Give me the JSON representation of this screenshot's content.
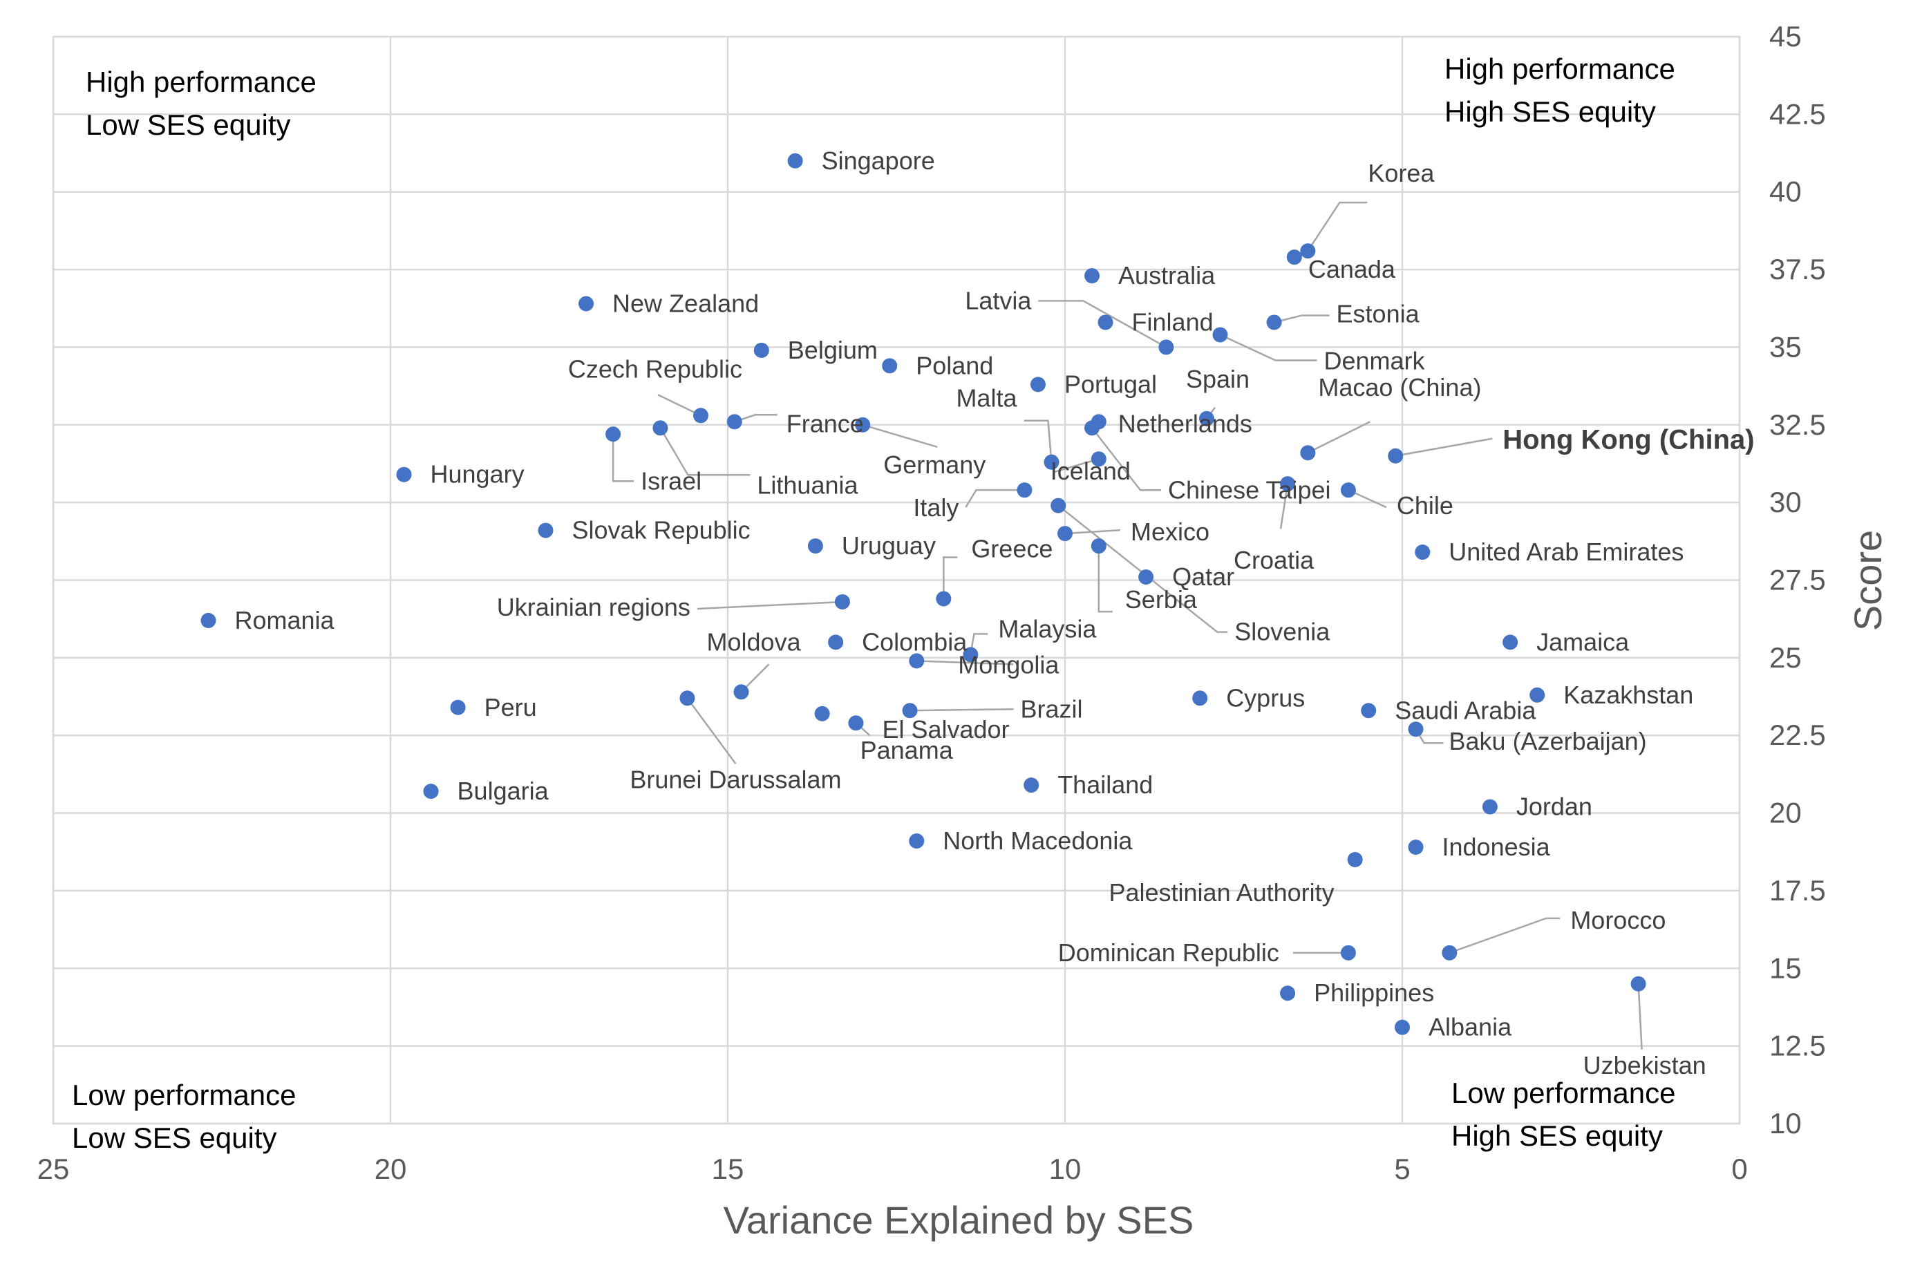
{
  "chart_data": {
    "type": "scatter",
    "title": "",
    "xlabel": "Variance Explained by SES",
    "ylabel": "Score",
    "xlim": [
      25,
      0
    ],
    "x_reversed": true,
    "ylim": [
      10,
      45
    ],
    "x_ticks": [
      "25",
      "20",
      "15",
      "10",
      "5",
      "0"
    ],
    "y_ticks": [
      "10",
      "12.5",
      "15",
      "17.5",
      "20",
      "22.5",
      "25",
      "27.5",
      "30",
      "32.5",
      "35",
      "37.5",
      "40",
      "42.5",
      "45"
    ],
    "grid": true,
    "y_axis_side": "right",
    "color": "#4472c4",
    "quadrants": {
      "top_left": [
        "High performance",
        "Low SES equity"
      ],
      "top_right": [
        "High performance",
        "High SES equity"
      ],
      "bottom_left": [
        "Low performance",
        "Low SES equity"
      ],
      "bottom_right": [
        "Low performance",
        "High SES equity"
      ]
    },
    "points": [
      {
        "label": "Singapore",
        "x": 14.0,
        "y": 41.0
      },
      {
        "label": "Korea",
        "x": 6.4,
        "y": 38.1
      },
      {
        "label": "Canada",
        "x": 6.6,
        "y": 37.9
      },
      {
        "label": "Australia",
        "x": 9.6,
        "y": 37.3
      },
      {
        "label": "New Zealand",
        "x": 17.1,
        "y": 36.4
      },
      {
        "label": "Latvia",
        "x": 8.5,
        "y": 35.0
      },
      {
        "label": "Finland",
        "x": 9.4,
        "y": 35.8
      },
      {
        "label": "Estonia",
        "x": 6.9,
        "y": 35.8
      },
      {
        "label": "Denmark",
        "x": 7.7,
        "y": 35.4
      },
      {
        "label": "Belgium",
        "x": 14.5,
        "y": 34.9
      },
      {
        "label": "Poland",
        "x": 12.6,
        "y": 34.4
      },
      {
        "label": "Portugal",
        "x": 10.4,
        "y": 33.8
      },
      {
        "label": "Spain",
        "x": 7.9,
        "y": 32.7
      },
      {
        "label": "Czech Republic",
        "x": 15.4,
        "y": 32.8
      },
      {
        "label": "France",
        "x": 14.9,
        "y": 32.6
      },
      {
        "label": "Lithuania",
        "x": 16.0,
        "y": 32.4
      },
      {
        "label": "Israel",
        "x": 16.7,
        "y": 32.2
      },
      {
        "label": "Germany",
        "x": 13.0,
        "y": 32.5
      },
      {
        "label": "Malta",
        "x": 10.2,
        "y": 31.3
      },
      {
        "label": "Netherlands",
        "x": 9.5,
        "y": 32.6
      },
      {
        "label": "Chinese Taipei",
        "x": 9.6,
        "y": 32.4
      },
      {
        "label": "Macao (China)",
        "x": 6.4,
        "y": 31.6
      },
      {
        "label": "Hong Kong (China)",
        "x": 5.1,
        "y": 31.5
      },
      {
        "label": "Hungary",
        "x": 19.8,
        "y": 30.9
      },
      {
        "label": "Iceland",
        "x": 9.5,
        "y": 31.4
      },
      {
        "label": "Italy",
        "x": 10.6,
        "y": 30.4
      },
      {
        "label": "Croatia",
        "x": 6.7,
        "y": 30.6
      },
      {
        "label": "Chile",
        "x": 5.8,
        "y": 30.4
      },
      {
        "label": "Slovenia",
        "x": 10.1,
        "y": 29.9
      },
      {
        "label": "Slovak Republic",
        "x": 17.7,
        "y": 29.1
      },
      {
        "label": "Mexico",
        "x": 10.0,
        "y": 29.0
      },
      {
        "label": "Uruguay",
        "x": 13.7,
        "y": 28.6
      },
      {
        "label": "Serbia",
        "x": 9.5,
        "y": 28.6
      },
      {
        "label": "United Arab Emirates",
        "x": 4.7,
        "y": 28.4
      },
      {
        "label": "Qatar",
        "x": 8.8,
        "y": 27.6
      },
      {
        "label": "Greece",
        "x": 11.8,
        "y": 26.9
      },
      {
        "label": "Ukrainian regions",
        "x": 13.3,
        "y": 26.8
      },
      {
        "label": "Romania",
        "x": 22.7,
        "y": 26.2
      },
      {
        "label": "Colombia",
        "x": 13.4,
        "y": 25.5
      },
      {
        "label": "Jamaica",
        "x": 3.4,
        "y": 25.5
      },
      {
        "label": "Malaysia",
        "x": 11.4,
        "y": 25.1
      },
      {
        "label": "Mongolia",
        "x": 12.2,
        "y": 24.9
      },
      {
        "label": "Moldova",
        "x": 14.8,
        "y": 23.9
      },
      {
        "label": "Brunei Darussalam",
        "x": 15.6,
        "y": 23.7
      },
      {
        "label": "Cyprus",
        "x": 8.0,
        "y": 23.7
      },
      {
        "label": "Kazakhstan",
        "x": 3.0,
        "y": 23.8
      },
      {
        "label": "Peru",
        "x": 19.0,
        "y": 23.4
      },
      {
        "label": "Saudi Arabia",
        "x": 5.5,
        "y": 23.3
      },
      {
        "label": "Panama",
        "x": 13.6,
        "y": 23.2
      },
      {
        "label": "Brazil",
        "x": 12.3,
        "y": 23.3
      },
      {
        "label": "El Salvador",
        "x": 13.1,
        "y": 22.9
      },
      {
        "label": "Baku (Azerbaijan)",
        "x": 4.8,
        "y": 22.7
      },
      {
        "label": "Thailand",
        "x": 10.5,
        "y": 20.9
      },
      {
        "label": "Bulgaria",
        "x": 19.4,
        "y": 20.7
      },
      {
        "label": "Jordan",
        "x": 3.7,
        "y": 20.2
      },
      {
        "label": "North Macedonia",
        "x": 12.2,
        "y": 19.1
      },
      {
        "label": "Indonesia",
        "x": 4.8,
        "y": 18.9
      },
      {
        "label": "Palestinian Authority",
        "x": 5.7,
        "y": 18.5
      },
      {
        "label": "Morocco",
        "x": 4.3,
        "y": 15.5
      },
      {
        "label": "Dominican Republic",
        "x": 5.8,
        "y": 15.5
      },
      {
        "label": "Uzbekistan",
        "x": 1.5,
        "y": 14.5
      },
      {
        "label": "Philippines",
        "x": 6.7,
        "y": 14.2
      },
      {
        "label": "Albania",
        "x": 5.0,
        "y": 13.1
      }
    ]
  }
}
